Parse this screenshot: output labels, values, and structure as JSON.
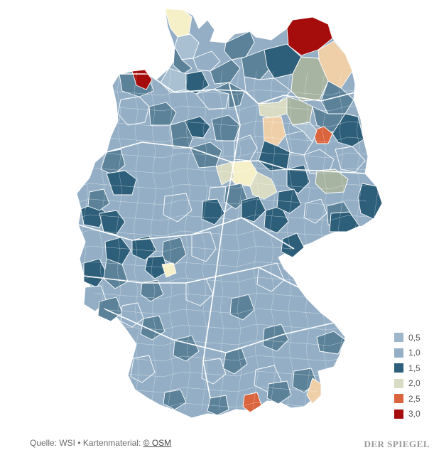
{
  "map": {
    "colors": {
      "border": "#ffffff",
      "state_border": "#ffffff",
      "base": "#94afc5",
      "light": "#a8c0d2",
      "dark": "#2e5f7a",
      "mid": "#5b8299",
      "sage": "#a7b4a2",
      "cream": "#f6f0c8",
      "beige": "#d9dcc2",
      "peach": "#efcfa8",
      "orange": "#d9643e",
      "red": "#a50d0d"
    }
  },
  "legend": {
    "items": [
      {
        "label": "0,5",
        "color": "#9db6ca"
      },
      {
        "label": "1,0",
        "color": "#94afc5"
      },
      {
        "label": "1,5",
        "color": "#2e5f7a"
      },
      {
        "label": "2,0",
        "color": "#d9dcc2"
      },
      {
        "label": "2,5",
        "color": "#d9643e"
      },
      {
        "label": "3,0",
        "color": "#a50d0d"
      }
    ]
  },
  "footer": {
    "source_prefix": "Quelle: WSI",
    "bullet": "•",
    "map_material": "Kartenmaterial:",
    "osm": "© OSM",
    "brand": "DER SPIEGEL"
  }
}
